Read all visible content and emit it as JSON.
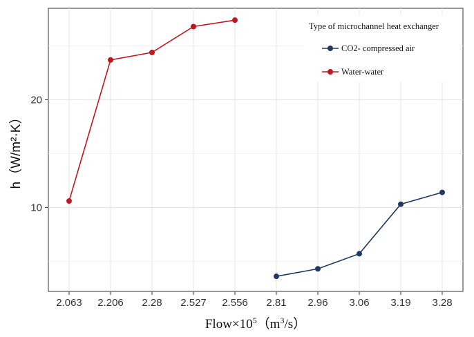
{
  "chart_data": {
    "type": "line",
    "categories": [
      "2.063",
      "2.206",
      "2.28",
      "2.527",
      "2.556",
      "2.81",
      "2.96",
      "3.06",
      "3.19",
      "3.28"
    ],
    "xlabel_main": "Flow×10",
    "xlabel_sup": "5",
    "xlabel_unit_pre": "（m",
    "xlabel_unit_sup": "3",
    "xlabel_unit_post": "/s）",
    "ylabel": "h（W/m²·K）",
    "ylim": [
      2.2,
      28.5
    ],
    "yticks": [
      10,
      20
    ],
    "grid": true,
    "legend": {
      "title": "Type of microchannel heat exchanger",
      "placement": "top-right"
    },
    "series": [
      {
        "name": "CO2- compressed air",
        "color": "#1f3864",
        "x": [
          "2.81",
          "2.96",
          "3.06",
          "3.19",
          "3.28"
        ],
        "values": [
          3.6,
          4.3,
          5.7,
          10.3,
          11.4
        ]
      },
      {
        "name": "Water-water",
        "color": "#c0161e",
        "x": [
          "2.063",
          "2.206",
          "2.28",
          "2.527",
          "2.556"
        ],
        "values": [
          10.6,
          23.7,
          24.4,
          26.8,
          27.4
        ]
      }
    ]
  }
}
